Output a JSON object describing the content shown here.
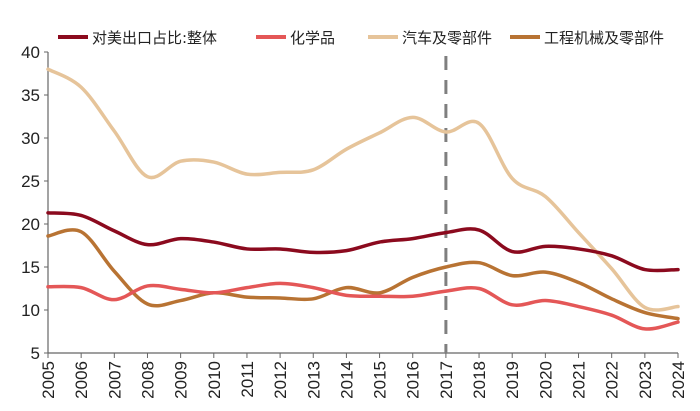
{
  "chart_data": {
    "type": "line",
    "title": "",
    "xlabel": "",
    "ylabel": "",
    "ylim": [
      5,
      40
    ],
    "yticks": [
      5,
      10,
      15,
      20,
      25,
      30,
      35,
      40
    ],
    "grid": false,
    "legend_position": "top",
    "reference_line": {
      "x": "2017",
      "style": "dashed",
      "color": "#7f7f7f"
    },
    "categories": [
      "2005",
      "2006",
      "2007",
      "2008",
      "2009",
      "2010",
      "2011",
      "2012",
      "2013",
      "2014",
      "2015",
      "2016",
      "2017",
      "2018",
      "2019",
      "2020",
      "2021",
      "2022",
      "2023",
      "2024"
    ],
    "series": [
      {
        "name": "对美出口占比:整体",
        "color": "#8b0a1e",
        "values": [
          21.3,
          21.0,
          19.2,
          17.6,
          18.3,
          17.9,
          17.1,
          17.1,
          16.7,
          16.9,
          17.9,
          18.3,
          19.0,
          19.3,
          16.8,
          17.4,
          17.1,
          16.3,
          14.7,
          14.7
        ]
      },
      {
        "name": "化学品",
        "color": "#e45757",
        "values": [
          12.7,
          12.6,
          11.2,
          12.8,
          12.4,
          12.0,
          12.6,
          13.1,
          12.6,
          11.7,
          11.6,
          11.6,
          12.2,
          12.5,
          10.6,
          11.1,
          10.4,
          9.4,
          7.8,
          8.6
        ]
      },
      {
        "name": "汽车及零部件",
        "color": "#e6c49a",
        "values": [
          38.0,
          35.9,
          30.8,
          25.5,
          27.3,
          27.2,
          25.8,
          26.0,
          26.3,
          28.7,
          30.6,
          32.4,
          30.7,
          31.7,
          25.3,
          23.2,
          19.0,
          14.8,
          10.3,
          10.4
        ]
      },
      {
        "name": "工程机械及零部件",
        "color": "#b87333",
        "values": [
          18.6,
          19.1,
          14.5,
          10.7,
          11.1,
          12.0,
          11.5,
          11.4,
          11.3,
          12.6,
          12.0,
          13.8,
          15.0,
          15.5,
          14.0,
          14.4,
          13.2,
          11.3,
          9.7,
          9.0
        ]
      }
    ]
  }
}
